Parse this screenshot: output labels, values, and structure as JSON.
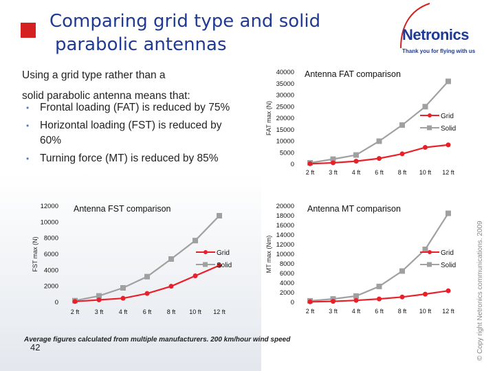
{
  "title": {
    "line1": "Comparing grid type and solid",
    "line2": "parabolic antennas"
  },
  "logo": {
    "name": "Netronics",
    "tagline": "Thank you for flying with us"
  },
  "intro": {
    "line1": "Using a grid type rather than a",
    "line2": "solid parabolic antenna means that:"
  },
  "bullets": [
    "Frontal loading (FAT) is reduced by 75%",
    "Horizontal loading (FST) is reduced by 60%",
    "Turning force (MT) is reduced by 85%"
  ],
  "footnote": "Average figures calculated from multiple manufacturers. 200 km/hour wind speed",
  "page_number": "42",
  "copyright": "© Copy right Netronics communications. 2009",
  "colors": {
    "title": "#1f3a93",
    "grid_series": "#e8202a",
    "solid_series": "#a0a0a0",
    "bullet_square": "#d42020"
  },
  "chart_data": [
    {
      "type": "line",
      "title": "Antenna FAT comparison",
      "ylabel": "FAT max (N)",
      "xlabel": "",
      "categories": [
        "2 ft",
        "3 ft",
        "4 ft",
        "6 ft",
        "8 ft",
        "10 ft",
        "12 ft"
      ],
      "yticks": [
        0,
        5000,
        10000,
        15000,
        20000,
        25000,
        30000,
        35000,
        40000
      ],
      "ylim": [
        0,
        40000
      ],
      "legend_position": "right",
      "series": [
        {
          "name": "Grid",
          "color": "#e8202a",
          "values": [
            200,
            600,
            1300,
            2500,
            4500,
            7300,
            8400
          ]
        },
        {
          "name": "Solid",
          "color": "#a0a0a0",
          "values": [
            600,
            2200,
            4000,
            10000,
            17000,
            25000,
            36000
          ]
        }
      ]
    },
    {
      "type": "line",
      "title": "Antenna FST comparison",
      "ylabel": "FST max (N)",
      "xlabel": "",
      "categories": [
        "2 ft",
        "3 ft",
        "4 ft",
        "6 ft",
        "8 ft",
        "10 ft",
        "12 ft"
      ],
      "yticks": [
        0,
        2000,
        4000,
        6000,
        8000,
        10000,
        12000
      ],
      "ylim": [
        0,
        12000
      ],
      "legend_position": "right",
      "series": [
        {
          "name": "Grid",
          "color": "#e8202a",
          "values": [
            100,
            300,
            500,
            1100,
            2000,
            3300,
            4600
          ]
        },
        {
          "name": "Solid",
          "color": "#a0a0a0",
          "values": [
            200,
            800,
            1800,
            3200,
            5400,
            7700,
            10800
          ]
        }
      ]
    },
    {
      "type": "line",
      "title": "Antenna MT comparison",
      "ylabel": "MT max (Nm)",
      "xlabel": "",
      "categories": [
        "2 ft",
        "3 ft",
        "4 ft",
        "6 ft",
        "8 ft",
        "10 ft",
        "12 ft"
      ],
      "yticks": [
        0,
        2000,
        4000,
        6000,
        8000,
        10000,
        12000,
        14000,
        16000,
        18000,
        20000
      ],
      "ylim": [
        0,
        20000
      ],
      "legend_position": "right",
      "series": [
        {
          "name": "Grid",
          "color": "#e8202a",
          "values": [
            100,
            200,
            400,
            700,
            1100,
            1700,
            2400
          ]
        },
        {
          "name": "Solid",
          "color": "#a0a0a0",
          "values": [
            300,
            700,
            1300,
            3300,
            6500,
            11000,
            18500
          ]
        }
      ]
    }
  ]
}
